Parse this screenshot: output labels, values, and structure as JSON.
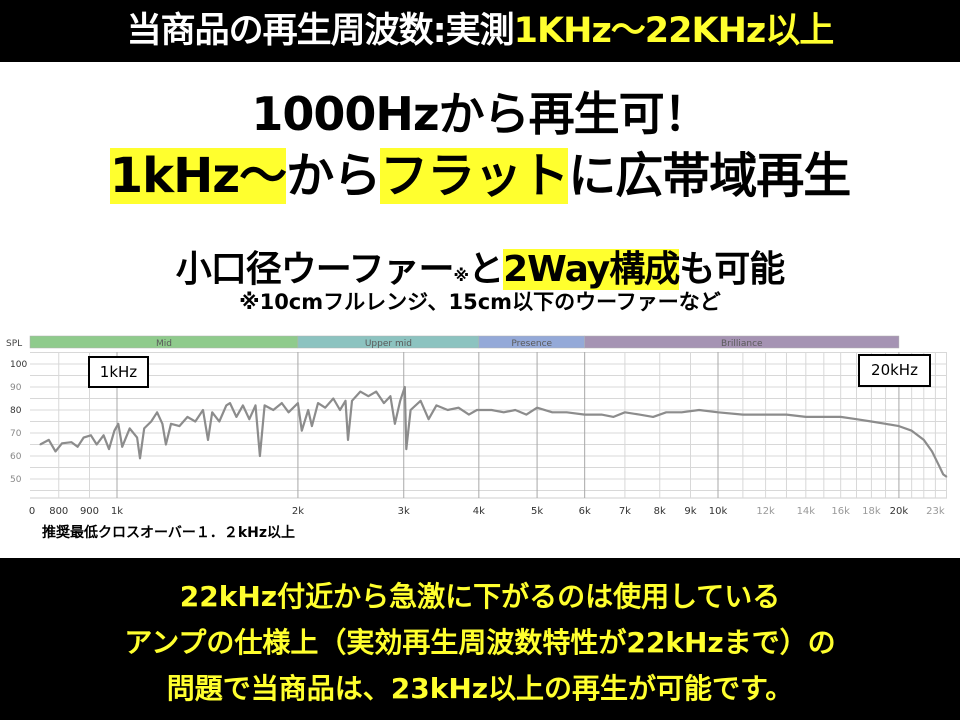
{
  "header": {
    "white_text": "当商品の再生周波数:実測",
    "yellow_text": "1KHz～22KHz以上"
  },
  "headline": {
    "line1": "1000Hzから再生可！",
    "line2_parts": [
      "1kHz～",
      "から",
      "フラット",
      "に広帯域再生"
    ],
    "line3_parts": [
      "小口径ウーファー",
      "※",
      "と",
      "2Way構成",
      "も可能"
    ],
    "line4": "※10cmフルレンジ、15cm以下のウーファーなど"
  },
  "colors": {
    "yellow": "#ffff2e",
    "curve": "#8c8c8c",
    "mid": "#8fcb8c",
    "upper_mid": "#8cc3c0",
    "presence": "#94a9d8",
    "brilliance": "#a593b3"
  },
  "chart_data": {
    "type": "line",
    "ylabel": "SPL",
    "x_scale": "log",
    "xlim": [
      716,
      24000
    ],
    "ylim": [
      40,
      105
    ],
    "grid": true,
    "y_ticks": [
      100,
      90,
      80,
      70,
      60,
      50
    ],
    "x_ticks": [
      {
        "f": 700,
        "label": "0"
      },
      {
        "f": 800,
        "label": "800"
      },
      {
        "f": 900,
        "label": "900"
      },
      {
        "f": 1000,
        "label": "1k"
      },
      {
        "f": 2000,
        "label": "2k"
      },
      {
        "f": 3000,
        "label": "3k"
      },
      {
        "f": 4000,
        "label": "4k"
      },
      {
        "f": 5000,
        "label": "5k"
      },
      {
        "f": 6000,
        "label": "6k"
      },
      {
        "f": 7000,
        "label": "7k"
      },
      {
        "f": 8000,
        "label": "8k"
      },
      {
        "f": 9000,
        "label": "9k"
      },
      {
        "f": 10000,
        "label": "10k"
      },
      {
        "f": 12000,
        "label": "12k"
      },
      {
        "f": 14000,
        "label": "14k"
      },
      {
        "f": 16000,
        "label": "16k"
      },
      {
        "f": 18000,
        "label": "18k"
      },
      {
        "f": 20000,
        "label": "20k"
      },
      {
        "f": 23000,
        "label": "23k"
      }
    ],
    "bands": [
      {
        "name": "Mid",
        "from": 716,
        "to": 2000
      },
      {
        "name": "Upper mid",
        "from": 2000,
        "to": 4000
      },
      {
        "name": "Presence",
        "from": 4000,
        "to": 6000
      },
      {
        "name": "Brilliance",
        "from": 6000,
        "to": 20000
      }
    ],
    "annotations": [
      {
        "label": "1kHz",
        "f": 1000
      },
      {
        "label": "20kHz",
        "f": 20000
      }
    ],
    "points": [
      [
        745,
        65
      ],
      [
        770,
        67
      ],
      [
        790,
        62
      ],
      [
        810,
        65.5
      ],
      [
        840,
        66
      ],
      [
        860,
        64
      ],
      [
        880,
        68
      ],
      [
        905,
        69
      ],
      [
        925,
        65
      ],
      [
        950,
        69
      ],
      [
        970,
        63
      ],
      [
        990,
        71
      ],
      [
        1005,
        74
      ],
      [
        1020,
        64
      ],
      [
        1050,
        72
      ],
      [
        1080,
        68
      ],
      [
        1092,
        59
      ],
      [
        1110,
        72
      ],
      [
        1140,
        75
      ],
      [
        1166,
        79
      ],
      [
        1190,
        74
      ],
      [
        1206,
        65
      ],
      [
        1230,
        74
      ],
      [
        1270,
        73
      ],
      [
        1310,
        77
      ],
      [
        1350,
        75
      ],
      [
        1390,
        80
      ],
      [
        1417,
        67
      ],
      [
        1440,
        79
      ],
      [
        1480,
        75
      ],
      [
        1520,
        82
      ],
      [
        1542,
        83
      ],
      [
        1580,
        77
      ],
      [
        1620,
        82
      ],
      [
        1660,
        76
      ],
      [
        1700,
        82
      ],
      [
        1729,
        60
      ],
      [
        1760,
        82
      ],
      [
        1820,
        80
      ],
      [
        1880,
        83
      ],
      [
        1930,
        79
      ],
      [
        2000,
        83
      ],
      [
        2030,
        71
      ],
      [
        2080,
        80
      ],
      [
        2110,
        73
      ],
      [
        2160,
        83
      ],
      [
        2220,
        81
      ],
      [
        2290,
        85
      ],
      [
        2350,
        80
      ],
      [
        2400,
        84
      ],
      [
        2423,
        67
      ],
      [
        2460,
        84
      ],
      [
        2540,
        88
      ],
      [
        2620,
        86
      ],
      [
        2700,
        88
      ],
      [
        2780,
        83
      ],
      [
        2850,
        86
      ],
      [
        2900,
        74
      ],
      [
        2960,
        84
      ],
      [
        3012,
        90
      ],
      [
        3030,
        63
      ],
      [
        3080,
        80
      ],
      [
        3200,
        84
      ],
      [
        3300,
        76
      ],
      [
        3400,
        82
      ],
      [
        3550,
        80
      ],
      [
        3700,
        81
      ],
      [
        3850,
        78
      ],
      [
        3970,
        80
      ],
      [
        4200,
        80
      ],
      [
        4400,
        79
      ],
      [
        4600,
        80
      ],
      [
        4800,
        78
      ],
      [
        5000,
        81
      ],
      [
        5300,
        79
      ],
      [
        5600,
        79
      ],
      [
        6000,
        78
      ],
      [
        6400,
        78
      ],
      [
        6700,
        77
      ],
      [
        7000,
        79
      ],
      [
        7400,
        78
      ],
      [
        7800,
        77
      ],
      [
        8200,
        79
      ],
      [
        8700,
        79
      ],
      [
        9300,
        80
      ],
      [
        10000,
        79
      ],
      [
        11000,
        78
      ],
      [
        12000,
        78
      ],
      [
        13000,
        78
      ],
      [
        14000,
        77
      ],
      [
        15000,
        77
      ],
      [
        16000,
        77
      ],
      [
        17000,
        76
      ],
      [
        18000,
        75
      ],
      [
        19000,
        74
      ],
      [
        20000,
        73
      ],
      [
        21000,
        71
      ],
      [
        22000,
        67
      ],
      [
        22700,
        62
      ],
      [
        23300,
        56
      ],
      [
        23700,
        52
      ],
      [
        24000,
        51
      ]
    ]
  },
  "crossover_note": "推奨最低クロスオーバー１．２kHz以上",
  "footer": {
    "line1": "22kHz付近から急激に下がるのは使用している",
    "line2": "アンプの仕様上（実効再生周波数特性が22kHzまで）の",
    "line3": "問題で当商品は、23kHz以上の再生が可能です。"
  }
}
